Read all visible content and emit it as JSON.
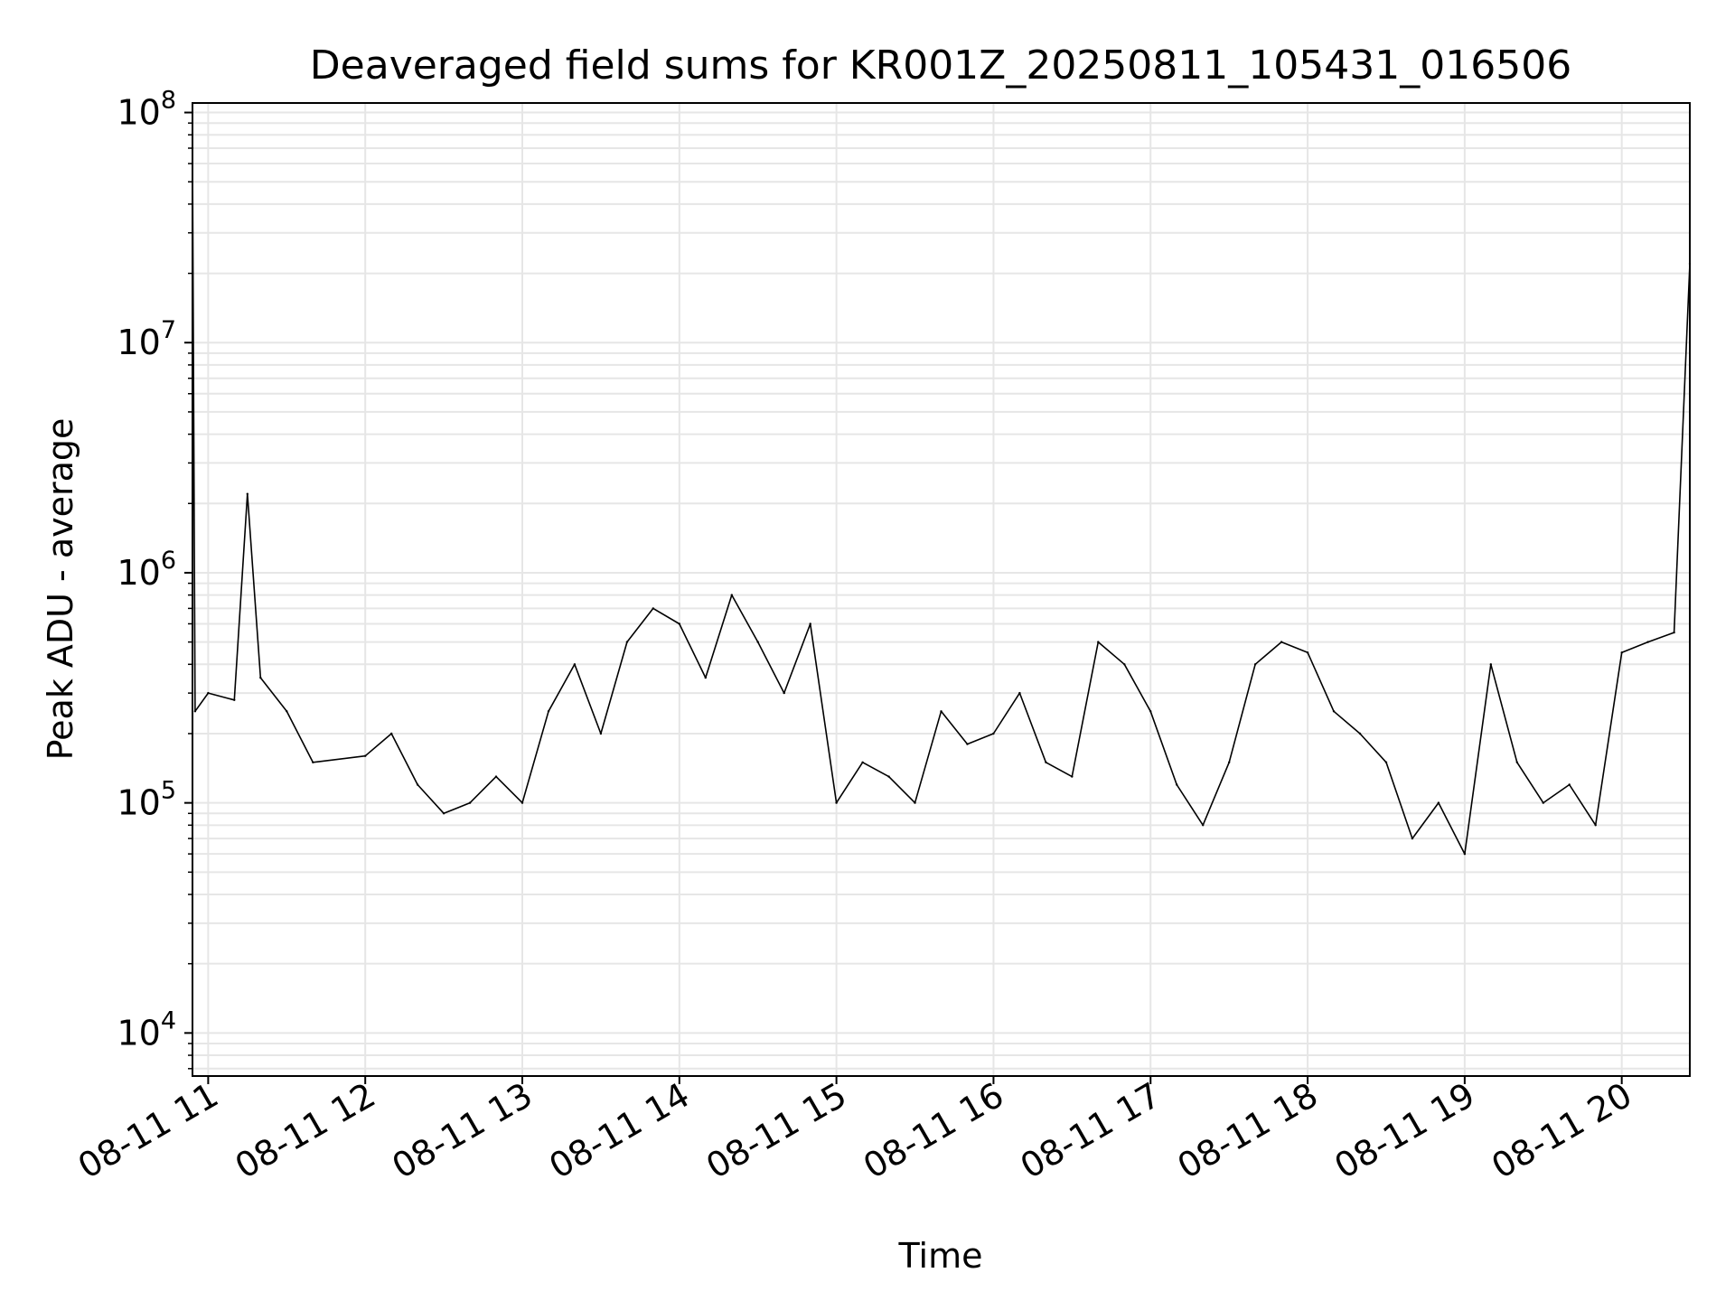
{
  "chart_data": {
    "type": "line",
    "title": "Deaveraged field sums for KR001Z_20250811_105431_016506",
    "xlabel": "Time",
    "ylabel": "Peak ADU - average",
    "yscale": "log",
    "ylim": [
      6500,
      110000000
    ],
    "xlim": [
      "08-11 10:54",
      "08-11 20:26"
    ],
    "x_ticks": [
      "08-11 11",
      "08-11 12",
      "08-11 13",
      "08-11 14",
      "08-11 15",
      "08-11 16",
      "08-11 17",
      "08-11 18",
      "08-11 19",
      "08-11 20"
    ],
    "y_ticks": [
      {
        "base": "10",
        "exp": "4",
        "value": 10000
      },
      {
        "base": "10",
        "exp": "5",
        "value": 100000
      },
      {
        "base": "10",
        "exp": "6",
        "value": 1000000
      },
      {
        "base": "10",
        "exp": "7",
        "value": 10000000
      },
      {
        "base": "10",
        "exp": "8",
        "value": 100000000
      }
    ],
    "grid": true,
    "line_color": "#000000",
    "series": [
      {
        "points": [
          [
            "08-11 10:54",
            70000000
          ],
          [
            "08-11 10:55",
            250000
          ],
          [
            "08-11 11:00",
            300000
          ],
          [
            "08-11 11:10",
            280000
          ],
          [
            "08-11 11:15",
            2200000
          ],
          [
            "08-11 11:20",
            350000
          ],
          [
            "08-11 11:30",
            250000
          ],
          [
            "08-11 11:40",
            150000
          ],
          [
            "08-11 12:00",
            160000
          ],
          [
            "08-11 12:10",
            200000
          ],
          [
            "08-11 12:20",
            120000
          ],
          [
            "08-11 12:30",
            90000
          ],
          [
            "08-11 12:40",
            100000
          ],
          [
            "08-11 12:50",
            130000
          ],
          [
            "08-11 13:00",
            100000
          ],
          [
            "08-11 13:10",
            250000
          ],
          [
            "08-11 13:20",
            400000
          ],
          [
            "08-11 13:30",
            200000
          ],
          [
            "08-11 13:40",
            500000
          ],
          [
            "08-11 13:50",
            700000
          ],
          [
            "08-11 14:00",
            600000
          ],
          [
            "08-11 14:10",
            350000
          ],
          [
            "08-11 14:20",
            800000
          ],
          [
            "08-11 14:30",
            500000
          ],
          [
            "08-11 14:40",
            300000
          ],
          [
            "08-11 14:50",
            600000
          ],
          [
            "08-11 15:00",
            100000
          ],
          [
            "08-11 15:10",
            150000
          ],
          [
            "08-11 15:20",
            130000
          ],
          [
            "08-11 15:30",
            100000
          ],
          [
            "08-11 15:40",
            250000
          ],
          [
            "08-11 15:50",
            180000
          ],
          [
            "08-11 16:00",
            200000
          ],
          [
            "08-11 16:10",
            300000
          ],
          [
            "08-11 16:20",
            150000
          ],
          [
            "08-11 16:30",
            130000
          ],
          [
            "08-11 16:40",
            500000
          ],
          [
            "08-11 16:50",
            400000
          ],
          [
            "08-11 17:00",
            250000
          ],
          [
            "08-11 17:10",
            120000
          ],
          [
            "08-11 17:20",
            80000
          ],
          [
            "08-11 17:30",
            150000
          ],
          [
            "08-11 17:40",
            400000
          ],
          [
            "08-11 17:50",
            500000
          ],
          [
            "08-11 18:00",
            450000
          ],
          [
            "08-11 18:10",
            250000
          ],
          [
            "08-11 18:20",
            200000
          ],
          [
            "08-11 18:30",
            150000
          ],
          [
            "08-11 18:40",
            70000
          ],
          [
            "08-11 18:50",
            100000
          ],
          [
            "08-11 19:00",
            60000
          ],
          [
            "08-11 19:10",
            400000
          ],
          [
            "08-11 19:20",
            150000
          ],
          [
            "08-11 19:30",
            100000
          ],
          [
            "08-11 19:40",
            120000
          ],
          [
            "08-11 19:50",
            80000
          ],
          [
            "08-11 20:00",
            450000
          ],
          [
            "08-11 20:10",
            500000
          ],
          [
            "08-11 20:20",
            550000
          ],
          [
            "08-11 20:26",
            22000000
          ]
        ]
      }
    ]
  }
}
